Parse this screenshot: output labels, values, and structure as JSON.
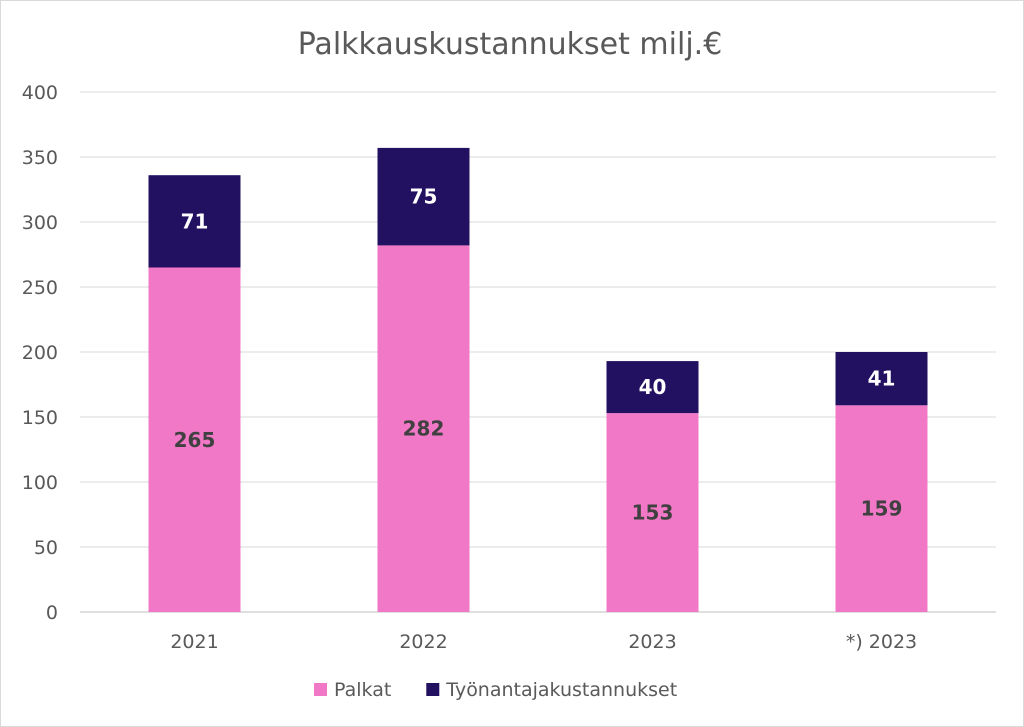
{
  "chart_data": {
    "type": "bar",
    "stacked": true,
    "title": "Palkkauskustannukset milj.€",
    "categories": [
      "2021",
      "2022",
      "2023",
      "*) 2023"
    ],
    "series": [
      {
        "name": "Palkat",
        "values": [
          265,
          282,
          153,
          159
        ],
        "color": "#f178c6",
        "label_color": "#404040"
      },
      {
        "name": "Työnantajakustannukset",
        "values": [
          71,
          75,
          40,
          41
        ],
        "color": "#221060",
        "label_color": "#ffffff"
      }
    ],
    "ylim": [
      0,
      400
    ],
    "yticks": [
      0,
      50,
      100,
      150,
      200,
      250,
      300,
      350,
      400
    ],
    "grid": true,
    "legend_position": "bottom"
  }
}
